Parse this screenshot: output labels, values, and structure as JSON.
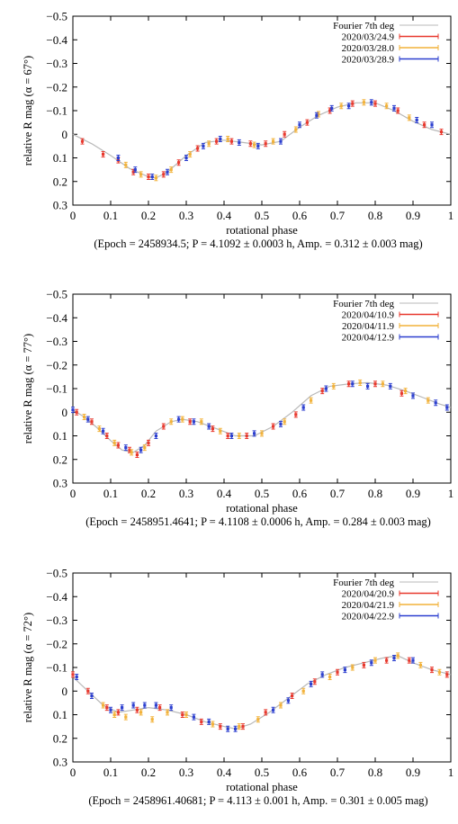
{
  "colors": {
    "fourier_line": "#b8b8b8",
    "night1": "#e8392e",
    "night2": "#f2b23a",
    "night3": "#2c3fcf",
    "axis": "#000000"
  },
  "chart_data": [
    {
      "type": "scatter",
      "title": "",
      "xlabel": "rotational phase",
      "ylabel": "relative R mag (α = 67°)",
      "caption": "(Epoch = 2458934.5; P = 4.1092 ± 0.0003 h, Amp. = 0.312 ± 0.003 mag)",
      "xlim": [
        0,
        1
      ],
      "ylim": [
        0.3,
        -0.5
      ],
      "x_ticks": [
        "0",
        "0.1",
        "0.2",
        "0.3",
        "0.4",
        "0.5",
        "0.6",
        "0.7",
        "0.8",
        "0.9",
        "1"
      ],
      "y_ticks": [
        "−0.5",
        "−0.4",
        "−0.3",
        "−0.2",
        "−0.1",
        "0",
        "0.1",
        "0.2",
        "0.3"
      ],
      "grid": false,
      "legend_position": "top-right",
      "fit_curve": {
        "name": "Fourier 7th deg",
        "x": [
          0,
          0.05,
          0.1,
          0.15,
          0.2,
          0.22,
          0.25,
          0.3,
          0.35,
          0.4,
          0.45,
          0.5,
          0.55,
          0.6,
          0.65,
          0.7,
          0.75,
          0.8,
          0.85,
          0.9,
          0.95,
          1.0
        ],
        "y": [
          0.0,
          0.04,
          0.09,
          0.145,
          0.18,
          0.185,
          0.16,
          0.09,
          0.035,
          0.025,
          0.035,
          0.045,
          0.03,
          -0.03,
          -0.08,
          -0.115,
          -0.133,
          -0.133,
          -0.1,
          -0.055,
          -0.02,
          0.0
        ]
      },
      "series": [
        {
          "name": "2020/03/24.9",
          "color_key": "night1",
          "x": [
            0.025,
            0.08,
            0.12,
            0.16,
            0.2,
            0.24,
            0.28,
            0.33,
            0.38,
            0.42,
            0.47,
            0.51,
            0.56,
            0.62,
            0.68,
            0.74,
            0.8,
            0.86,
            0.93,
            0.975
          ],
          "y": [
            0.03,
            0.085,
            0.11,
            0.16,
            0.18,
            0.17,
            0.12,
            0.06,
            0.03,
            0.03,
            0.04,
            0.04,
            0.0,
            -0.05,
            -0.1,
            -0.13,
            -0.13,
            -0.1,
            -0.04,
            -0.01
          ]
        },
        {
          "name": "2020/03/28.0",
          "color_key": "night2",
          "x": [
            0.14,
            0.18,
            0.22,
            0.26,
            0.31,
            0.36,
            0.41,
            0.48,
            0.53,
            0.59,
            0.65,
            0.71,
            0.77,
            0.83,
            0.89
          ],
          "y": [
            0.13,
            0.17,
            0.185,
            0.15,
            0.085,
            0.04,
            0.02,
            0.045,
            0.03,
            -0.02,
            -0.085,
            -0.12,
            -0.135,
            -0.12,
            -0.07
          ]
        },
        {
          "name": "2020/03/28.9",
          "color_key": "night3",
          "x": [
            0.12,
            0.165,
            0.21,
            0.25,
            0.3,
            0.345,
            0.39,
            0.44,
            0.49,
            0.55,
            0.6,
            0.645,
            0.685,
            0.73,
            0.79,
            0.85,
            0.91,
            0.95
          ],
          "y": [
            0.1,
            0.15,
            0.18,
            0.16,
            0.1,
            0.05,
            0.02,
            0.035,
            0.05,
            0.03,
            -0.04,
            -0.08,
            -0.11,
            -0.12,
            -0.135,
            -0.11,
            -0.06,
            -0.04
          ]
        }
      ]
    },
    {
      "type": "scatter",
      "title": "",
      "xlabel": "rotational phase",
      "ylabel": "relative R mag (α = 77°)",
      "caption": "(Epoch = 2458951.4641; P = 4.1108 ± 0.0006 h, Amp. = 0.284 ± 0.003 mag)",
      "xlim": [
        0,
        1
      ],
      "ylim": [
        0.3,
        -0.5
      ],
      "x_ticks": [
        "0",
        "0.1",
        "0.2",
        "0.3",
        "0.4",
        "0.5",
        "0.6",
        "0.7",
        "0.8",
        "0.9",
        "1"
      ],
      "y_ticks": [
        "−0.5",
        "−0.4",
        "−0.3",
        "−0.2",
        "−0.1",
        "0",
        "0.1",
        "0.2",
        "0.3"
      ],
      "grid": false,
      "legend_position": "top-right",
      "fit_curve": {
        "name": "Fourier 7th deg",
        "x": [
          0,
          0.03,
          0.06,
          0.1,
          0.13,
          0.16,
          0.19,
          0.22,
          0.26,
          0.29,
          0.33,
          0.38,
          0.43,
          0.48,
          0.53,
          0.58,
          0.63,
          0.68,
          0.73,
          0.78,
          0.83,
          0.88,
          0.93,
          0.97,
          1.0
        ],
        "y": [
          -0.01,
          0.02,
          0.06,
          0.12,
          0.16,
          0.17,
          0.14,
          0.08,
          0.04,
          0.03,
          0.04,
          0.07,
          0.1,
          0.1,
          0.06,
          0.0,
          -0.07,
          -0.11,
          -0.12,
          -0.125,
          -0.115,
          -0.09,
          -0.06,
          -0.035,
          -0.02
        ]
      },
      "series": [
        {
          "name": "2020/04/10.9",
          "color_key": "night1",
          "x": [
            0.01,
            0.05,
            0.09,
            0.12,
            0.15,
            0.17,
            0.2,
            0.24,
            0.31,
            0.37,
            0.41,
            0.46,
            0.53,
            0.59,
            0.66,
            0.73,
            0.8,
            0.87
          ],
          "y": [
            0.0,
            0.04,
            0.1,
            0.14,
            0.16,
            0.18,
            0.13,
            0.06,
            0.04,
            0.07,
            0.1,
            0.1,
            0.06,
            0.01,
            -0.09,
            -0.12,
            -0.12,
            -0.08
          ]
        },
        {
          "name": "2020/04/11.9",
          "color_key": "night2",
          "x": [
            0.03,
            0.07,
            0.11,
            0.155,
            0.19,
            0.26,
            0.29,
            0.34,
            0.39,
            0.44,
            0.5,
            0.56,
            0.63,
            0.69,
            0.76,
            0.82,
            0.88,
            0.94
          ],
          "y": [
            0.02,
            0.07,
            0.13,
            0.17,
            0.15,
            0.04,
            0.03,
            0.04,
            0.08,
            0.1,
            0.09,
            0.04,
            -0.05,
            -0.11,
            -0.125,
            -0.12,
            -0.09,
            -0.05
          ]
        },
        {
          "name": "2020/04/12.9",
          "color_key": "night3",
          "x": [
            0.0,
            0.04,
            0.08,
            0.14,
            0.18,
            0.22,
            0.28,
            0.32,
            0.36,
            0.42,
            0.48,
            0.55,
            0.61,
            0.67,
            0.74,
            0.78,
            0.84,
            0.9,
            0.96,
            0.99
          ],
          "y": [
            -0.01,
            0.03,
            0.08,
            0.15,
            0.16,
            0.1,
            0.03,
            0.04,
            0.06,
            0.1,
            0.09,
            0.05,
            -0.02,
            -0.1,
            -0.12,
            -0.11,
            -0.11,
            -0.07,
            -0.04,
            -0.02
          ]
        }
      ]
    },
    {
      "type": "scatter",
      "title": "",
      "xlabel": "rotational phase",
      "ylabel": "relative R mag (α = 72°)",
      "caption": "(Epoch = 2458961.40681; P = 4.113 ± 0.001 h, Amp. = 0.301 ± 0.005 mag)",
      "xlim": [
        0,
        1
      ],
      "ylim": [
        0.3,
        -0.5
      ],
      "x_ticks": [
        "0",
        "0.1",
        "0.2",
        "0.3",
        "0.4",
        "0.5",
        "0.6",
        "0.7",
        "0.8",
        "0.9",
        "1"
      ],
      "y_ticks": [
        "−0.5",
        "−0.4",
        "−0.3",
        "−0.2",
        "−0.1",
        "0",
        "0.1",
        "0.2",
        "0.3"
      ],
      "grid": false,
      "legend_position": "top-right",
      "fit_curve": {
        "name": "Fourier 7th deg",
        "x": [
          0,
          0.04,
          0.08,
          0.12,
          0.16,
          0.2,
          0.25,
          0.3,
          0.35,
          0.4,
          0.43,
          0.47,
          0.52,
          0.57,
          0.62,
          0.67,
          0.72,
          0.77,
          0.82,
          0.86,
          0.9,
          0.95,
          1.0
        ],
        "y": [
          -0.06,
          0.0,
          0.06,
          0.09,
          0.08,
          0.07,
          0.08,
          0.1,
          0.13,
          0.15,
          0.16,
          0.14,
          0.09,
          0.03,
          -0.03,
          -0.07,
          -0.1,
          -0.12,
          -0.14,
          -0.15,
          -0.12,
          -0.09,
          -0.07
        ]
      },
      "series": [
        {
          "name": "2020/04/20.9",
          "color_key": "night1",
          "x": [
            0.0,
            0.04,
            0.09,
            0.12,
            0.17,
            0.23,
            0.29,
            0.34,
            0.39,
            0.45,
            0.51,
            0.58,
            0.64,
            0.7,
            0.77,
            0.83,
            0.89,
            0.95,
            0.99
          ],
          "y": [
            -0.07,
            0.0,
            0.07,
            0.09,
            0.08,
            0.07,
            0.1,
            0.13,
            0.15,
            0.15,
            0.09,
            0.02,
            -0.04,
            -0.08,
            -0.11,
            -0.13,
            -0.13,
            -0.09,
            -0.07
          ]
        },
        {
          "name": "2020/04/21.9",
          "color_key": "night2",
          "x": [
            0.08,
            0.11,
            0.14,
            0.18,
            0.21,
            0.25,
            0.3,
            0.37,
            0.44,
            0.49,
            0.55,
            0.61,
            0.68,
            0.74,
            0.8,
            0.86,
            0.92,
            0.97
          ],
          "y": [
            0.06,
            0.1,
            0.11,
            0.09,
            0.12,
            0.09,
            0.1,
            0.14,
            0.15,
            0.12,
            0.06,
            0.0,
            -0.06,
            -0.1,
            -0.13,
            -0.15,
            -0.11,
            -0.08
          ]
        },
        {
          "name": "2020/04/22.9",
          "color_key": "night3",
          "x": [
            0.01,
            0.05,
            0.1,
            0.13,
            0.16,
            0.19,
            0.22,
            0.26,
            0.32,
            0.36,
            0.41,
            0.43,
            0.53,
            0.57,
            0.63,
            0.66,
            0.72,
            0.79,
            0.85,
            0.9
          ],
          "y": [
            -0.06,
            0.02,
            0.08,
            0.07,
            0.06,
            0.06,
            0.06,
            0.07,
            0.11,
            0.13,
            0.16,
            0.16,
            0.08,
            0.04,
            -0.03,
            -0.07,
            -0.09,
            -0.12,
            -0.14,
            -0.13
          ]
        }
      ]
    }
  ]
}
